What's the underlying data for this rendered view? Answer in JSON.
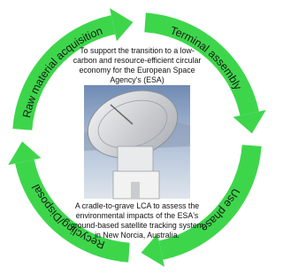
{
  "cycle": {
    "stages": [
      "Raw material acquisition",
      "Terminal assembly",
      "Use phase",
      "Recycling/Disposal"
    ]
  },
  "center": {
    "top_text": [
      "To support the transition to a low-",
      "carbon and resource-efficient circular",
      "economy for the European Space",
      "Agency's (ESA)"
    ],
    "bottom_text": [
      "A cradle-to-grave LCA to assess the",
      "environmental impacts of the ESA's",
      "ground-based satellite tracking system",
      "in New Norcia, Australia."
    ]
  }
}
